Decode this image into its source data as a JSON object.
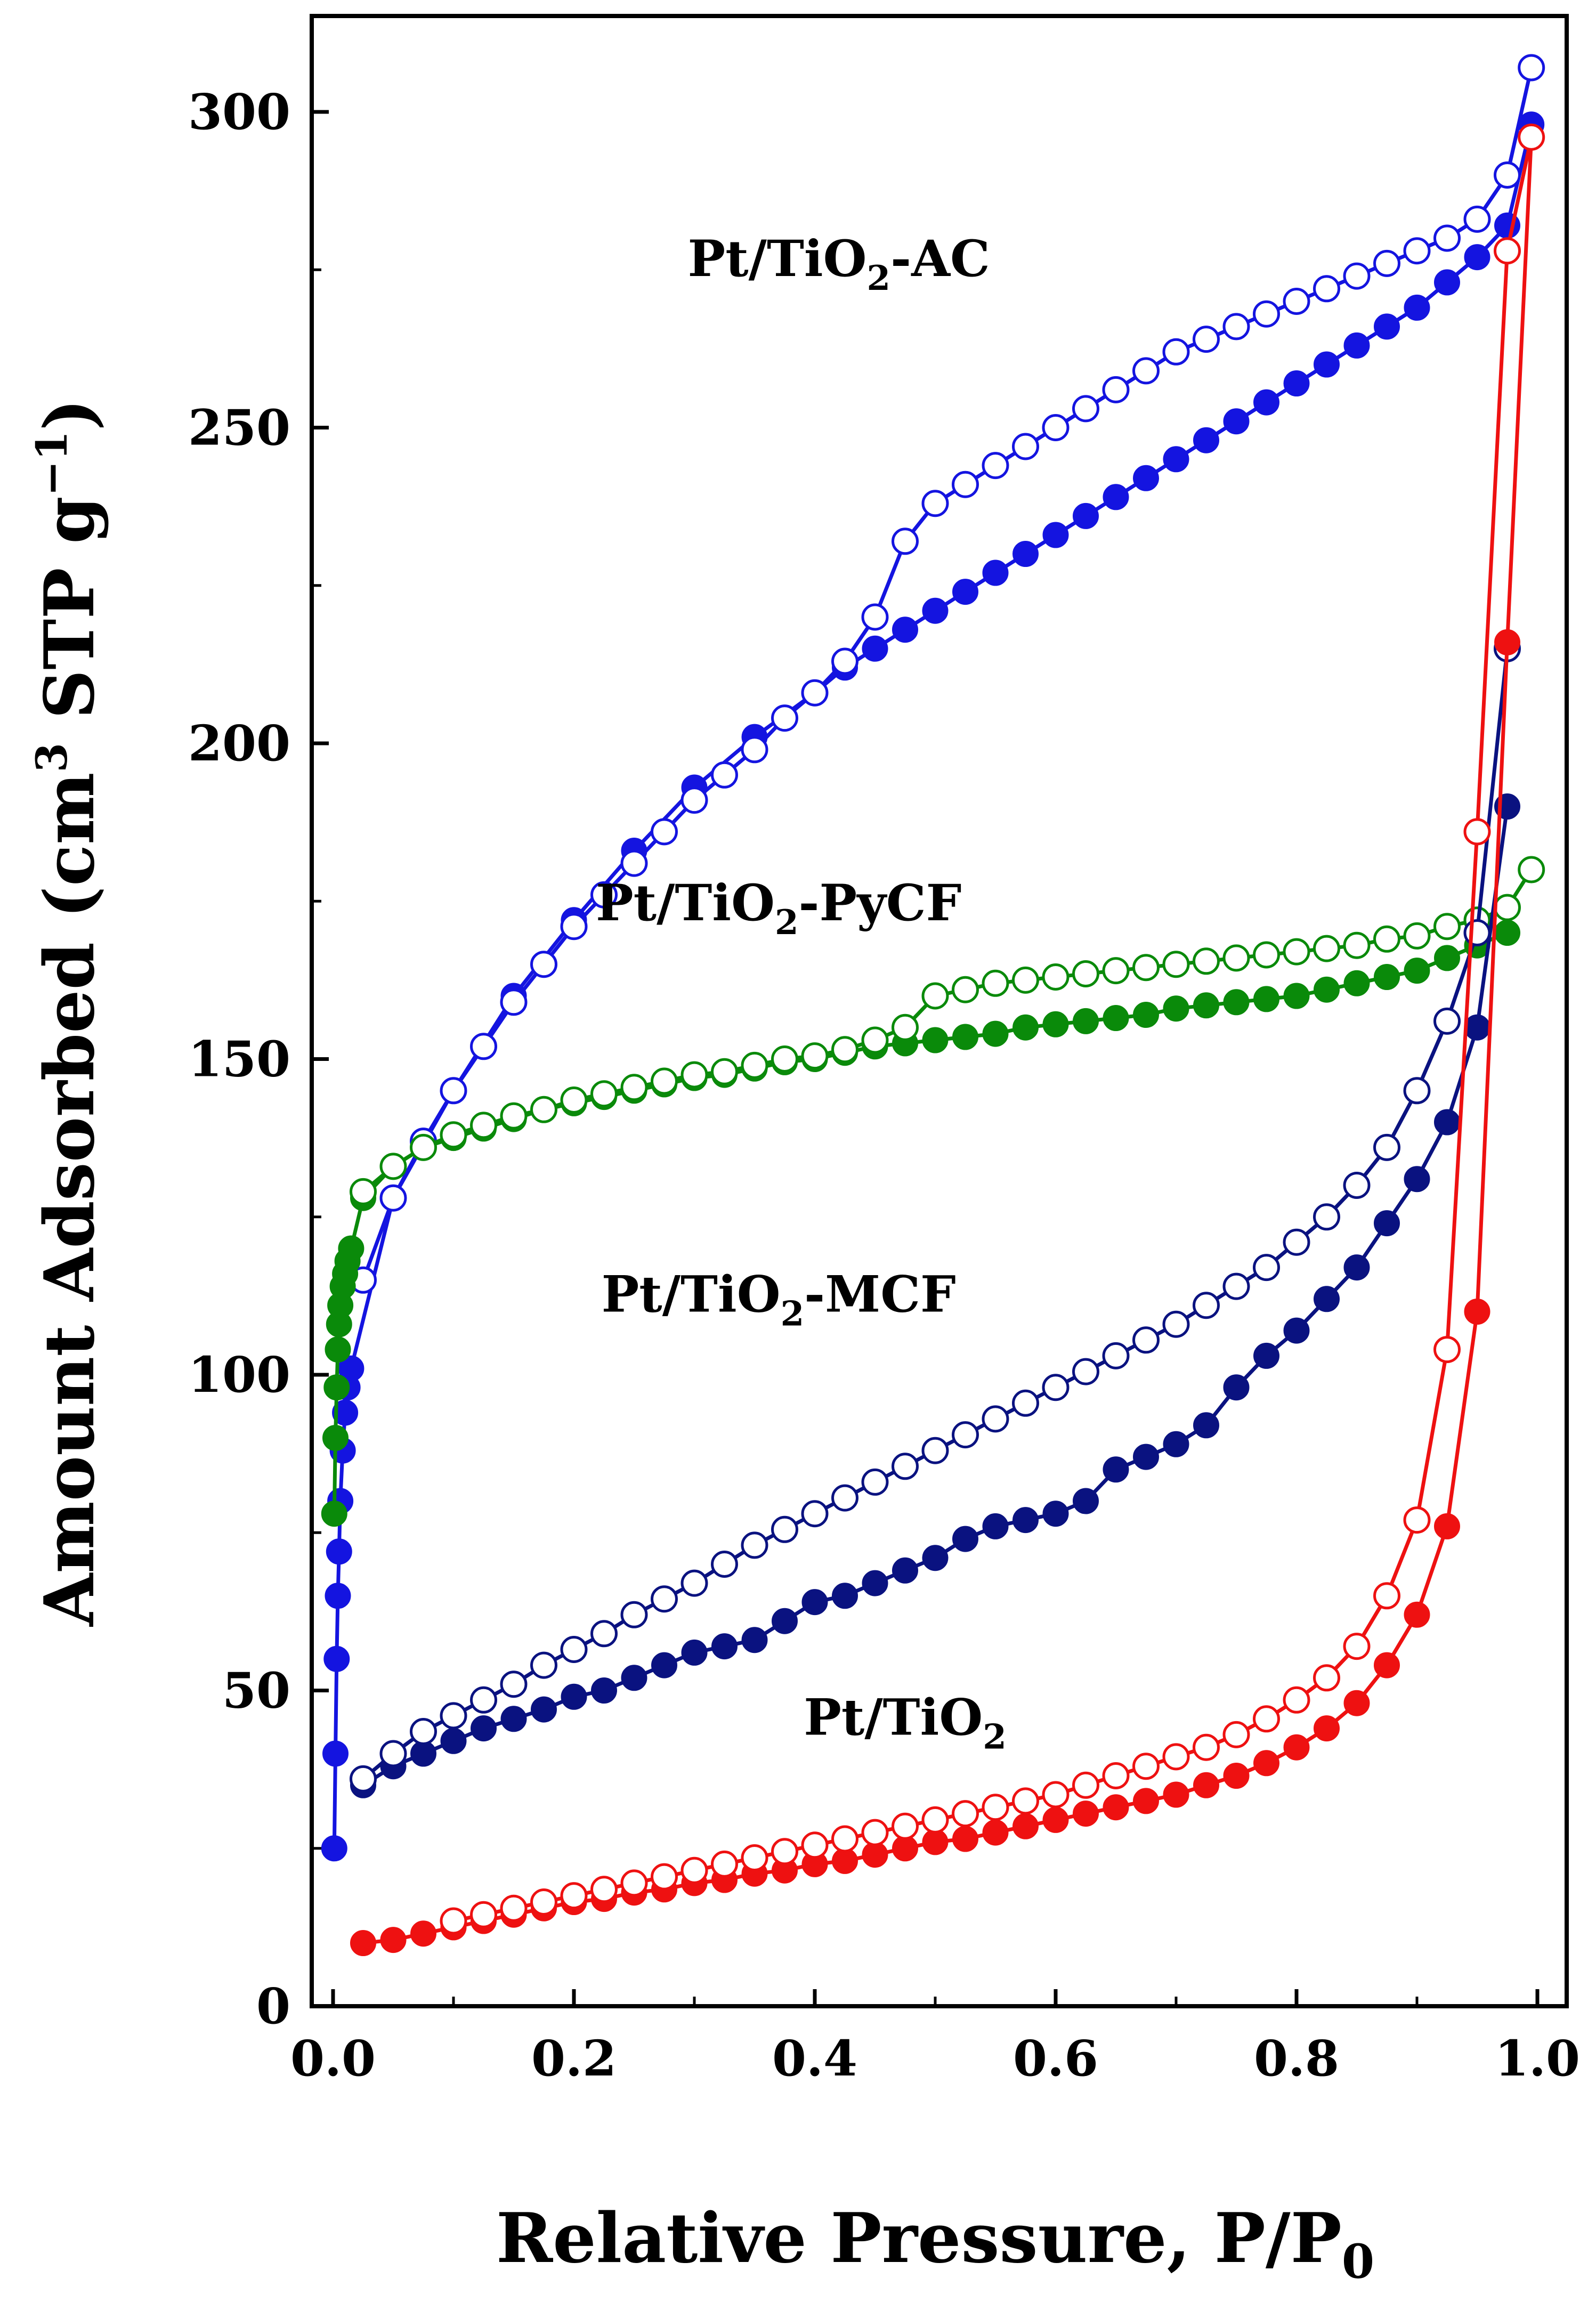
{
  "chart_data": {
    "type": "line",
    "title": "",
    "xlabel": "Relative Pressure, P/P0",
    "ylabel": "Amount Adsorbed (cm3 STP g−1)",
    "xlim": [
      0.0,
      1.0
    ],
    "ylim": [
      0,
      300
    ],
    "xticks": [
      "0.0",
      "0.2",
      "0.4",
      "0.6",
      "0.8",
      "1.0"
    ],
    "yticks": [
      "0",
      "50",
      "100",
      "150",
      "200",
      "250",
      "300"
    ],
    "legend": "none",
    "grid": false,
    "series": [
      {
        "name": "Pt/TiO2-AC adsorption",
        "color": "#1414e0",
        "marker": "filled-circle",
        "x": [
          0.001,
          0.002,
          0.003,
          0.004,
          0.005,
          0.006,
          0.008,
          0.01,
          0.012,
          0.015,
          0.05,
          0.1,
          0.15,
          0.2,
          0.25,
          0.3,
          0.35,
          0.4,
          0.425,
          0.45,
          0.475,
          0.5,
          0.525,
          0.55,
          0.575,
          0.6,
          0.625,
          0.65,
          0.675,
          0.7,
          0.725,
          0.75,
          0.775,
          0.8,
          0.825,
          0.85,
          0.875,
          0.9,
          0.925,
          0.95,
          0.975,
          0.995
        ],
        "y": [
          25,
          40,
          55,
          65,
          72,
          80,
          88,
          94,
          98,
          101,
          128,
          145,
          160,
          172,
          183,
          193,
          201,
          208,
          212,
          215,
          218,
          221,
          224,
          227,
          230,
          233,
          236,
          239,
          242,
          245,
          248,
          251,
          254,
          257,
          260,
          263,
          266,
          269,
          273,
          277,
          282,
          298
        ]
      },
      {
        "name": "Pt/TiO2-AC desorption",
        "color": "#1414e0",
        "marker": "open-circle",
        "x": [
          0.025,
          0.05,
          0.075,
          0.1,
          0.125,
          0.15,
          0.175,
          0.2,
          0.225,
          0.25,
          0.275,
          0.3,
          0.325,
          0.35,
          0.375,
          0.4,
          0.425,
          0.45,
          0.475,
          0.5,
          0.525,
          0.55,
          0.575,
          0.6,
          0.625,
          0.65,
          0.675,
          0.7,
          0.725,
          0.75,
          0.775,
          0.8,
          0.825,
          0.85,
          0.875,
          0.9,
          0.925,
          0.95,
          0.975,
          0.995
        ],
        "y": [
          115,
          128,
          137,
          145,
          152,
          159,
          165,
          171,
          176,
          181,
          186,
          191,
          195,
          199,
          204,
          208,
          213,
          220,
          232,
          238,
          241,
          244,
          247,
          250,
          253,
          256,
          259,
          262,
          264,
          266,
          268,
          270,
          272,
          274,
          276,
          278,
          280,
          283,
          290,
          307
        ]
      },
      {
        "name": "Pt/TiO2-PyCF adsorption",
        "color": "#0a8a0a",
        "marker": "filled-circle",
        "x": [
          0.001,
          0.002,
          0.003,
          0.004,
          0.005,
          0.006,
          0.008,
          0.01,
          0.012,
          0.015,
          0.025,
          0.05,
          0.075,
          0.1,
          0.125,
          0.15,
          0.175,
          0.2,
          0.225,
          0.25,
          0.275,
          0.3,
          0.325,
          0.35,
          0.375,
          0.4,
          0.425,
          0.45,
          0.475,
          0.5,
          0.525,
          0.55,
          0.575,
          0.6,
          0.625,
          0.65,
          0.675,
          0.7,
          0.725,
          0.75,
          0.775,
          0.8,
          0.825,
          0.85,
          0.875,
          0.9,
          0.925,
          0.95,
          0.975
        ],
        "y": [
          78,
          90,
          98,
          104,
          108,
          111,
          114,
          116,
          118,
          120,
          128,
          133,
          136,
          137.5,
          139,
          140.5,
          142,
          143,
          144,
          145,
          146,
          147,
          147.5,
          148.5,
          149.5,
          150,
          151,
          152,
          152.5,
          153,
          153.5,
          154,
          155,
          155.5,
          156,
          156.5,
          157,
          158,
          158.5,
          159,
          159.5,
          160,
          161,
          162,
          163,
          164,
          166,
          168,
          170
        ]
      },
      {
        "name": "Pt/TiO2-PyCF desorption",
        "color": "#0a8a0a",
        "marker": "open-circle",
        "x": [
          0.025,
          0.05,
          0.075,
          0.1,
          0.125,
          0.15,
          0.175,
          0.2,
          0.225,
          0.25,
          0.275,
          0.3,
          0.325,
          0.35,
          0.375,
          0.4,
          0.425,
          0.45,
          0.475,
          0.5,
          0.525,
          0.55,
          0.575,
          0.6,
          0.625,
          0.65,
          0.675,
          0.7,
          0.725,
          0.75,
          0.775,
          0.8,
          0.825,
          0.85,
          0.875,
          0.9,
          0.925,
          0.95,
          0.975,
          0.995
        ],
        "y": [
          129,
          133,
          136,
          138,
          139.5,
          141,
          142,
          143.5,
          144.5,
          145.5,
          146.5,
          147.5,
          148,
          149,
          150,
          150.5,
          151.5,
          153,
          155,
          160,
          161,
          162,
          162.5,
          163,
          163.5,
          164,
          164.5,
          165,
          165.5,
          166,
          166.5,
          167,
          167.5,
          168,
          169,
          169.5,
          171,
          172,
          174,
          180
        ]
      },
      {
        "name": "Pt/TiO2-MCF adsorption",
        "color": "#0a1280",
        "marker": "filled-circle",
        "x": [
          0.025,
          0.05,
          0.075,
          0.1,
          0.125,
          0.15,
          0.175,
          0.2,
          0.225,
          0.25,
          0.275,
          0.3,
          0.325,
          0.35,
          0.375,
          0.4,
          0.425,
          0.45,
          0.475,
          0.5,
          0.525,
          0.55,
          0.575,
          0.6,
          0.625,
          0.65,
          0.675,
          0.7,
          0.725,
          0.75,
          0.775,
          0.8,
          0.825,
          0.85,
          0.875,
          0.9,
          0.925,
          0.95,
          0.975
        ],
        "y": [
          35,
          38,
          40,
          42,
          44,
          45.5,
          47,
          49,
          50,
          52,
          54,
          56,
          57,
          58,
          61,
          64,
          65,
          67,
          69,
          71,
          74,
          76,
          77,
          78,
          80,
          85,
          87,
          89,
          92,
          98,
          103,
          107,
          112,
          117,
          124,
          131,
          140,
          155,
          190
        ]
      },
      {
        "name": "Pt/TiO2-MCF desorption",
        "color": "#0a1280",
        "marker": "open-circle",
        "x": [
          0.025,
          0.05,
          0.075,
          0.1,
          0.125,
          0.15,
          0.175,
          0.2,
          0.225,
          0.25,
          0.275,
          0.3,
          0.325,
          0.35,
          0.375,
          0.4,
          0.425,
          0.45,
          0.475,
          0.5,
          0.525,
          0.55,
          0.575,
          0.6,
          0.625,
          0.65,
          0.675,
          0.7,
          0.725,
          0.75,
          0.775,
          0.8,
          0.825,
          0.85,
          0.875,
          0.9,
          0.925,
          0.95,
          0.975
        ],
        "y": [
          36,
          40,
          43.5,
          46,
          48.5,
          51,
          54,
          56.5,
          59,
          62,
          64.5,
          67,
          70,
          73,
          75.5,
          78,
          80.5,
          83,
          85.5,
          88,
          90.5,
          93,
          95.5,
          98,
          100.5,
          103,
          105.5,
          108,
          111,
          114,
          117,
          121,
          125,
          130,
          136,
          145,
          156,
          170,
          215
        ]
      },
      {
        "name": "Pt/TiO2 adsorption",
        "color": "#ee1111",
        "marker": "filled-circle",
        "x": [
          0.025,
          0.05,
          0.075,
          0.1,
          0.125,
          0.15,
          0.175,
          0.2,
          0.225,
          0.25,
          0.275,
          0.3,
          0.325,
          0.35,
          0.375,
          0.4,
          0.425,
          0.45,
          0.475,
          0.5,
          0.525,
          0.55,
          0.575,
          0.6,
          0.625,
          0.65,
          0.675,
          0.7,
          0.725,
          0.75,
          0.775,
          0.8,
          0.825,
          0.85,
          0.875,
          0.9,
          0.925,
          0.95,
          0.975,
          0.995
        ],
        "y": [
          10,
          10.5,
          11.5,
          12.5,
          13.5,
          14.5,
          15.5,
          16.5,
          17,
          18,
          18.5,
          19.5,
          20,
          21,
          21.5,
          22.5,
          23,
          24,
          25,
          26,
          26.5,
          27.5,
          28.5,
          29.5,
          30.5,
          31.5,
          32.5,
          33.5,
          35,
          36.5,
          38.5,
          41,
          44,
          48,
          54,
          62,
          76,
          110,
          216,
          296
        ]
      },
      {
        "name": "Pt/TiO2 desorption",
        "color": "#ee1111",
        "marker": "open-circle",
        "x": [
          0.1,
          0.125,
          0.15,
          0.175,
          0.2,
          0.225,
          0.25,
          0.275,
          0.3,
          0.325,
          0.35,
          0.375,
          0.4,
          0.425,
          0.45,
          0.475,
          0.5,
          0.525,
          0.55,
          0.575,
          0.6,
          0.625,
          0.65,
          0.675,
          0.7,
          0.725,
          0.75,
          0.775,
          0.8,
          0.825,
          0.85,
          0.875,
          0.9,
          0.925,
          0.95,
          0.975,
          0.995
        ],
        "y": [
          13.5,
          14.5,
          15.5,
          16.5,
          17.5,
          18.5,
          19.5,
          20.5,
          21.5,
          22.5,
          23.5,
          24.5,
          25.5,
          26.5,
          27.5,
          28.5,
          29.5,
          30.5,
          31.5,
          32.5,
          33.5,
          35,
          36.5,
          38,
          39.5,
          41,
          43,
          45.5,
          48.5,
          52,
          57,
          65,
          77,
          104,
          186,
          278,
          296
        ]
      }
    ],
    "annotations": [
      {
        "base": "Pt/TiO",
        "sub": "2",
        "tail": "-AC",
        "x": 0.42,
        "y": 274
      },
      {
        "base": "Pt/TiO",
        "sub": "2",
        "tail": "-PyCF",
        "x": 0.37,
        "y": 172
      },
      {
        "base": "Pt/TiO",
        "sub": "2",
        "tail": "-MCF",
        "x": 0.37,
        "y": 110
      },
      {
        "base": "Pt/TiO",
        "sub": "2",
        "tail": "",
        "x": 0.475,
        "y": 43
      }
    ]
  }
}
